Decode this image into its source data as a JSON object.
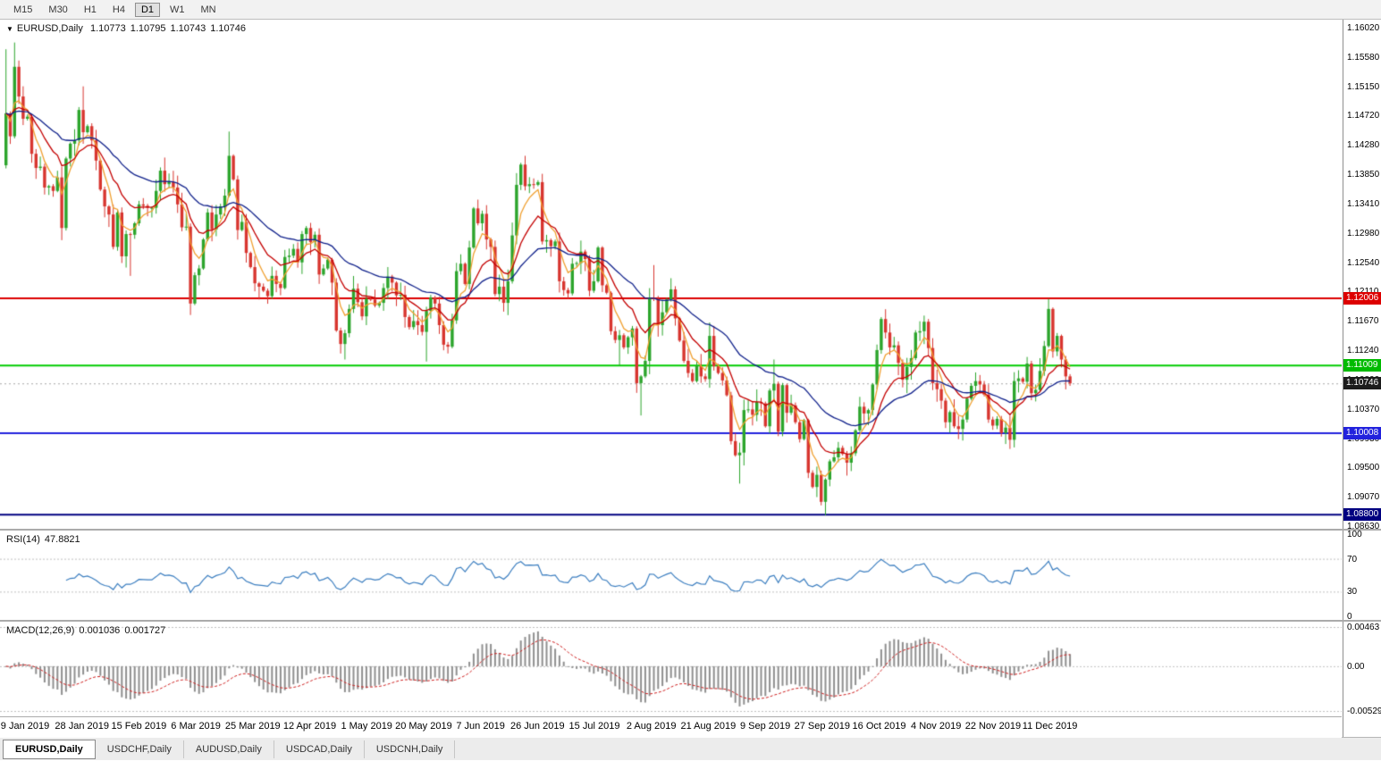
{
  "toolbar": {
    "timeframes": [
      "M15",
      "M30",
      "H1",
      "H4",
      "D1",
      "W1",
      "MN"
    ],
    "active": "D1"
  },
  "header": {
    "dropdown_icon": "▼",
    "symbol": "EURUSD,Daily",
    "open": "1.10773",
    "high": "1.10795",
    "low": "1.10743",
    "close": "1.10746"
  },
  "chart_data": {
    "type": "candlestick",
    "symbol": "EURUSD",
    "period": "Daily",
    "price_axis": {
      "min": 1.0863,
      "max": 1.1602,
      "tick_labels": [
        "1.16020",
        "1.15580",
        "1.15150",
        "1.14720",
        "1.14280",
        "1.13850",
        "1.13410",
        "1.12980",
        "1.12540",
        "1.12110",
        "1.11670",
        "1.11240",
        "1.10800",
        "1.10370",
        "1.09930",
        "1.09500",
        "1.09070",
        "1.08630"
      ]
    },
    "date_labels": [
      "9 Jan 2019",
      "28 Jan 2019",
      "15 Feb 2019",
      "6 Mar 2019",
      "25 Mar 2019",
      "12 Apr 2019",
      "1 May 2019",
      "20 May 2019",
      "7 Jun 2019",
      "26 Jun 2019",
      "15 Jul 2019",
      "2 Aug 2019",
      "21 Aug 2019",
      "9 Sep 2019",
      "27 Sep 2019",
      "16 Oct 2019",
      "4 Nov 2019",
      "22 Nov 2019",
      "11 Dec 2019"
    ],
    "first_open": 1.1398,
    "closes": [
      1.1475,
      1.1441,
      1.1544,
      1.15,
      1.1467,
      1.147,
      1.1415,
      1.1394,
      1.1396,
      1.1365,
      1.1367,
      1.136,
      1.138,
      1.1305,
      1.1408,
      1.143,
      1.1435,
      1.148,
      1.1447,
      1.1456,
      1.1435,
      1.1405,
      1.1362,
      1.1337,
      1.1325,
      1.1277,
      1.1328,
      1.1263,
      1.1296,
      1.1295,
      1.1312,
      1.134,
      1.1338,
      1.1335,
      1.1335,
      1.136,
      1.139,
      1.137,
      1.1373,
      1.1365,
      1.134,
      1.1306,
      1.1307,
      1.1193,
      1.1235,
      1.1245,
      1.1288,
      1.1328,
      1.1303,
      1.1325,
      1.1337,
      1.1353,
      1.1412,
      1.1377,
      1.1302,
      1.1314,
      1.1268,
      1.1247,
      1.1223,
      1.1218,
      1.1212,
      1.1204,
      1.1234,
      1.1222,
      1.1216,
      1.1262,
      1.1264,
      1.1274,
      1.1254,
      1.1296,
      1.1305,
      1.1284,
      1.1295,
      1.1236,
      1.1245,
      1.1258,
      1.1224,
      1.1153,
      1.1133,
      1.1149,
      1.1185,
      1.1215,
      1.1195,
      1.1174,
      1.12,
      1.1199,
      1.119,
      1.1194,
      1.1216,
      1.1233,
      1.1224,
      1.1205,
      1.1206,
      1.1173,
      1.1158,
      1.1167,
      1.1161,
      1.1151,
      1.1182,
      1.1202,
      1.1193,
      1.1161,
      1.1132,
      1.1129,
      1.1168,
      1.1241,
      1.1252,
      1.1222,
      1.1276,
      1.1334,
      1.1312,
      1.1326,
      1.1288,
      1.1277,
      1.1207,
      1.1218,
      1.1194,
      1.1226,
      1.1294,
      1.1369,
      1.1399,
      1.1367,
      1.137,
      1.1369,
      1.1373,
      1.1285,
      1.1287,
      1.1278,
      1.1285,
      1.1226,
      1.1213,
      1.1208,
      1.1252,
      1.1253,
      1.127,
      1.1259,
      1.1212,
      1.1226,
      1.1276,
      1.122,
      1.1209,
      1.1152,
      1.1139,
      1.1146,
      1.1128,
      1.1143,
      1.1156,
      1.1075,
      1.1085,
      1.1108,
      1.1202,
      1.12,
      1.1161,
      1.118,
      1.1199,
      1.1214,
      1.1171,
      1.1138,
      1.1108,
      1.109,
      1.1078,
      1.11,
      1.1085,
      1.1081,
      1.1145,
      1.11,
      1.109,
      1.1079,
      1.1057,
      1.0989,
      1.0968,
      1.0972,
      1.1035,
      1.1036,
      1.1028,
      1.1047,
      1.1045,
      1.1011,
      1.1064,
      1.1074,
      1.1003,
      1.1072,
      1.1031,
      1.1042,
      1.1017,
      1.0992,
      1.102,
      1.0942,
      1.0921,
      1.0939,
      1.0899,
      1.0932,
      1.0959,
      1.0965,
      1.0979,
      1.097,
      1.0957,
      1.0971,
      1.1005,
      1.104,
      1.103,
      1.1035,
      1.1073,
      1.1124,
      1.117,
      1.115,
      1.1128,
      1.1131,
      1.1105,
      1.108,
      1.1099,
      1.1112,
      1.115,
      1.1152,
      1.1166,
      1.1127,
      1.1075,
      1.1066,
      1.1049,
      1.1017,
      1.1032,
      1.1011,
      1.1007,
      1.1021,
      1.1052,
      1.1071,
      1.1078,
      1.1073,
      1.1058,
      1.1021,
      1.1012,
      1.1022,
      1.1001,
      1.1009,
      1.0991,
      1.1078,
      1.1082,
      1.1077,
      1.1104,
      1.106,
      1.1065,
      1.1093,
      1.113,
      1.1185,
      1.1122,
      1.1145,
      1.111,
      1.1085,
      1.10746
    ],
    "wick_overrides": [
      {
        "i": 0,
        "high": 1.157
      },
      {
        "i": 2,
        "high": 1.158
      },
      {
        "i": 18,
        "high": 1.1515
      },
      {
        "i": 29,
        "low": 1.1234
      },
      {
        "i": 43,
        "low": 1.1176
      },
      {
        "i": 52,
        "high": 1.1448
      },
      {
        "i": 79,
        "low": 1.111
      },
      {
        "i": 98,
        "low": 1.1107
      },
      {
        "i": 116,
        "low": 1.1181
      },
      {
        "i": 121,
        "high": 1.1412
      },
      {
        "i": 143,
        "low": 1.1101
      },
      {
        "i": 148,
        "low": 1.1027
      },
      {
        "i": 151,
        "high": 1.125
      },
      {
        "i": 171,
        "low": 1.0926
      },
      {
        "i": 179,
        "high": 1.111
      },
      {
        "i": 191,
        "low": 1.0879
      },
      {
        "i": 205,
        "high": 1.1179
      },
      {
        "i": 234,
        "low": 1.0981
      },
      {
        "i": 243,
        "high": 1.12
      }
    ],
    "candle_colors": {
      "bull": "#2ca52c",
      "bear": "#d8352f"
    },
    "moving_averages": [
      {
        "period": 5,
        "color": "#f0a030"
      },
      {
        "period": 13,
        "color": "#c40000"
      },
      {
        "period": 34,
        "color": "#10218b"
      }
    ],
    "hlines": [
      {
        "value": 1.12006,
        "color": "#dd0000"
      },
      {
        "value": 1.11009,
        "color": "#00cc00"
      },
      {
        "value": 1.10008,
        "color": "#2222dd"
      },
      {
        "value": 1.088,
        "color": "#000080"
      }
    ],
    "current_price": 1.10746,
    "current_price_line_color": "#a8a8a8",
    "price_tags": [
      {
        "label": "1.12006",
        "value": 1.12006,
        "color": "#dd0000"
      },
      {
        "label": "1.11009",
        "value": 1.11009,
        "color": "#00bb00"
      },
      {
        "label": "1.10746",
        "value": 1.10746,
        "color": "#1c1c1c"
      },
      {
        "label": "1.10008",
        "value": 1.10008,
        "color": "#2222dd"
      },
      {
        "label": "1.08800",
        "value": 1.088,
        "color": "#000080"
      }
    ],
    "rsi": {
      "name": "RSI(14)",
      "value": "47.8821",
      "period": 14,
      "color": "#3b7ec0",
      "levels": [
        70,
        30
      ],
      "scale": [
        {
          "label": "100",
          "value": 100
        },
        {
          "label": "70",
          "value": 70
        },
        {
          "label": "30",
          "value": 30
        },
        {
          "label": "0",
          "value": 0
        }
      ]
    },
    "macd": {
      "name": "MACD(12,26,9)",
      "value_main": "0.001036",
      "value_signal": "0.001727",
      "fast": 12,
      "slow": 26,
      "signal": 9,
      "hist_color": "#8f8f8f",
      "signal_color": "#d02020",
      "scale": [
        {
          "label": "0.00463",
          "value": 0.00463
        },
        {
          "label": "0.00",
          "value": 0
        },
        {
          "label": "-0.00529",
          "value": -0.00529
        }
      ]
    }
  },
  "tabs": {
    "items": [
      "EURUSD,Daily",
      "USDCHF,Daily",
      "AUDUSD,Daily",
      "USDCAD,Daily",
      "USDCNH,Daily"
    ],
    "active": "EURUSD,Daily"
  }
}
